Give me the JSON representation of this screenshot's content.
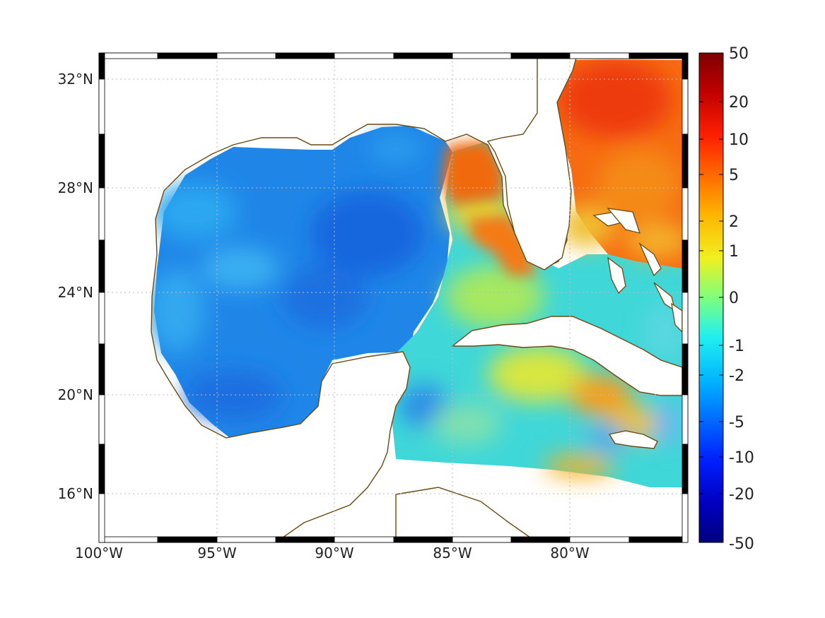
{
  "map": {
    "lon_ticks": [
      "100°W",
      "95°W",
      "90°W",
      "85°W",
      "80°W"
    ],
    "lat_ticks": [
      "32°N",
      "28°N",
      "24°N",
      "20°N",
      "16°N"
    ],
    "extent": {
      "lon_min": -100,
      "lon_max": -75,
      "lat_min": 14.3,
      "lat_max": 33
    },
    "coastline_color": "#6b4a12",
    "land_color": "#ffffff",
    "grid": "dotted"
  },
  "colorbar": {
    "labels": [
      "50",
      "20",
      "10",
      "5",
      "2",
      "1",
      "0",
      "-1",
      "-2",
      "-5",
      "-10",
      "-20",
      "-50"
    ],
    "colormap": "jet",
    "colors_top_to_bottom": [
      "#7f0000",
      "#d40000",
      "#ff3300",
      "#ff7a00",
      "#ffc800",
      "#d8ff28",
      "#7dff7d",
      "#28ffd8",
      "#00c8ff",
      "#007aff",
      "#0033ff",
      "#0000d4",
      "#00007f"
    ]
  }
}
